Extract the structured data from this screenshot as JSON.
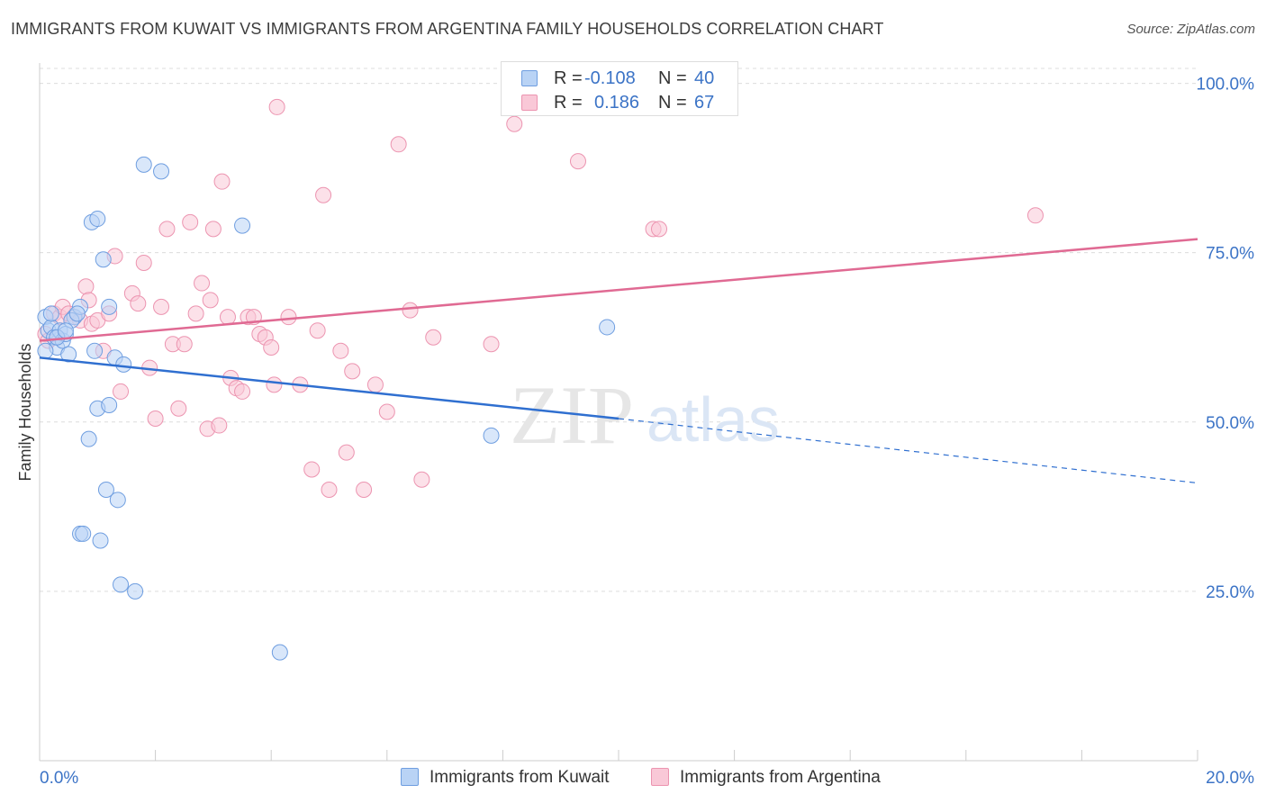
{
  "title": "IMMIGRANTS FROM KUWAIT VS IMMIGRANTS FROM ARGENTINA FAMILY HOUSEHOLDS CORRELATION CHART",
  "source": "Source: ZipAtlas.com",
  "watermark": {
    "zip": "ZIP",
    "atlas": "atlas"
  },
  "legend": {
    "r_label": "R =",
    "n_label": "N =",
    "series": [
      {
        "r": "-0.108",
        "n": "40"
      },
      {
        "r": "0.186",
        "n": "67"
      }
    ]
  },
  "colors": {
    "kuwait_fill": "#b9d3f5",
    "kuwait_stroke": "#6f9ee0",
    "kuwait_line": "#2f6fd0",
    "argentina_fill": "#f9c8d7",
    "argentina_stroke": "#ec94b0",
    "argentina_line": "#e06a93",
    "tick_label": "#3b73c6",
    "grid": "#dcdcdc"
  },
  "chart_data": {
    "type": "scatter",
    "ylabel": "Family Households",
    "xlim": [
      0,
      20
    ],
    "ylim": [
      0,
      103
    ],
    "x_tick_labels": [
      "0.0%",
      "20.0%"
    ],
    "y_ticks": [
      25,
      50,
      75,
      100
    ],
    "y_tick_labels": [
      "25.0%",
      "50.0%",
      "75.0%",
      "100.0%"
    ],
    "series": [
      {
        "name": "Immigrants from Kuwait",
        "points": [
          [
            0.1,
            65.5
          ],
          [
            0.15,
            63.5
          ],
          [
            0.2,
            64
          ],
          [
            0.25,
            62.5
          ],
          [
            0.3,
            61
          ],
          [
            0.35,
            63.5
          ],
          [
            0.4,
            62
          ],
          [
            0.45,
            63
          ],
          [
            0.5,
            60
          ],
          [
            0.1,
            60.5
          ],
          [
            0.2,
            66
          ],
          [
            0.6,
            65.5
          ],
          [
            0.7,
            67
          ],
          [
            0.9,
            79.5
          ],
          [
            1.0,
            80
          ],
          [
            1.1,
            74
          ],
          [
            1.2,
            67
          ],
          [
            0.95,
            60.5
          ],
          [
            1.3,
            59.5
          ],
          [
            1.45,
            58.5
          ],
          [
            1.8,
            88
          ],
          [
            2.1,
            87
          ],
          [
            3.5,
            79
          ],
          [
            0.85,
            47.5
          ],
          [
            1.0,
            52
          ],
          [
            1.2,
            52.5
          ],
          [
            1.15,
            40
          ],
          [
            1.35,
            38.5
          ],
          [
            0.7,
            33.5
          ],
          [
            0.75,
            33.5
          ],
          [
            1.05,
            32.5
          ],
          [
            1.4,
            26
          ],
          [
            1.65,
            25
          ],
          [
            4.15,
            16
          ],
          [
            0.55,
            65
          ],
          [
            0.65,
            66
          ],
          [
            0.3,
            62.5
          ],
          [
            0.45,
            63.5
          ],
          [
            7.8,
            48
          ],
          [
            9.8,
            64
          ]
        ]
      },
      {
        "name": "Immigrants from Argentina",
        "points": [
          [
            0.1,
            63
          ],
          [
            0.15,
            62
          ],
          [
            0.25,
            66
          ],
          [
            0.35,
            65.5
          ],
          [
            0.4,
            67
          ],
          [
            0.5,
            66
          ],
          [
            0.6,
            65.5
          ],
          [
            0.7,
            65
          ],
          [
            0.8,
            70
          ],
          [
            0.85,
            68
          ],
          [
            0.9,
            64.5
          ],
          [
            1.0,
            65
          ],
          [
            1.1,
            60.5
          ],
          [
            1.2,
            66
          ],
          [
            1.3,
            74.5
          ],
          [
            1.4,
            54.5
          ],
          [
            1.6,
            69
          ],
          [
            1.7,
            67.5
          ],
          [
            1.8,
            73.5
          ],
          [
            1.9,
            58
          ],
          [
            2.0,
            50.5
          ],
          [
            2.1,
            67
          ],
          [
            2.2,
            78.5
          ],
          [
            2.3,
            61.5
          ],
          [
            2.4,
            52
          ],
          [
            2.5,
            61.5
          ],
          [
            2.6,
            79.5
          ],
          [
            2.7,
            66
          ],
          [
            2.8,
            70.5
          ],
          [
            2.9,
            49
          ],
          [
            2.95,
            68
          ],
          [
            3.0,
            78.5
          ],
          [
            3.1,
            49.5
          ],
          [
            3.15,
            85.5
          ],
          [
            3.3,
            56.5
          ],
          [
            3.4,
            55
          ],
          [
            3.5,
            54.5
          ],
          [
            3.6,
            65.5
          ],
          [
            3.7,
            65.5
          ],
          [
            3.8,
            63
          ],
          [
            3.9,
            62.5
          ],
          [
            4.0,
            61
          ],
          [
            4.05,
            55.5
          ],
          [
            4.1,
            96.5
          ],
          [
            4.3,
            65.5
          ],
          [
            4.5,
            55.5
          ],
          [
            4.7,
            43
          ],
          [
            4.8,
            63.5
          ],
          [
            4.9,
            83.5
          ],
          [
            5.0,
            40
          ],
          [
            5.2,
            60.5
          ],
          [
            5.3,
            45.5
          ],
          [
            5.4,
            57.5
          ],
          [
            5.6,
            40
          ],
          [
            5.8,
            55.5
          ],
          [
            6.0,
            51.5
          ],
          [
            6.2,
            91
          ],
          [
            6.4,
            66.5
          ],
          [
            6.6,
            41.5
          ],
          [
            6.8,
            62.5
          ],
          [
            7.8,
            61.5
          ],
          [
            8.2,
            94
          ],
          [
            9.3,
            88.5
          ],
          [
            10.6,
            78.5
          ],
          [
            10.7,
            78.5
          ],
          [
            17.2,
            80.5
          ],
          [
            3.25,
            65.5
          ]
        ]
      }
    ],
    "trendlines": [
      {
        "series": "Immigrants from Kuwait",
        "x": [
          0,
          10
        ],
        "y": [
          59.5,
          50.5
        ],
        "dashed_x": [
          10,
          20
        ],
        "dashed_y": [
          50.5,
          41
        ]
      },
      {
        "series": "Immigrants from Argentina",
        "x": [
          0,
          20
        ],
        "y": [
          62,
          77
        ]
      }
    ]
  }
}
